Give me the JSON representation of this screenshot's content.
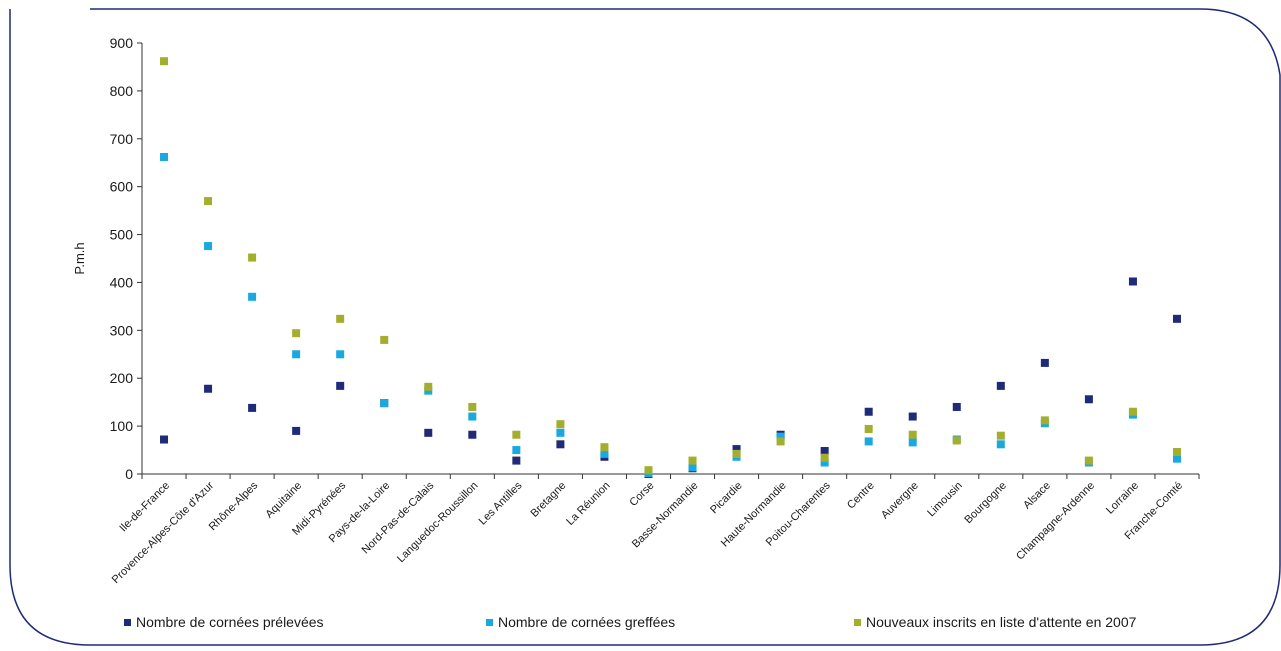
{
  "chart_data": {
    "type": "scatter",
    "ylabel": "P.m.h",
    "ylim": [
      0,
      900
    ],
    "yticks": [
      0,
      100,
      200,
      300,
      400,
      500,
      600,
      700,
      800,
      900
    ],
    "categories": [
      "Ile-de-France",
      "Provence-Alpes-Côte d'Azur",
      "Rhône-Alpes",
      "Aquitaine",
      "Midi-Pyrénées",
      "Pays-de-la-Loire",
      "Nord-Pas-de-Calais",
      "Languedoc-Roussillon",
      "Les Antilles",
      "Bretagne",
      "La Réunion",
      "Corse",
      "Basse-Normandie",
      "Picardie",
      "Haute-Normandie",
      "Poitou-Charentes",
      "Centre",
      "Auvergne",
      "Limousin",
      "Bourgogne",
      "Alsace",
      "Champagne-Ardenne",
      "Lorraine",
      "Franche-Comté"
    ],
    "series": [
      {
        "name": "Nombre de cornées prélevées",
        "color": "#1f2a78",
        "values": [
          72,
          178,
          138,
          90,
          184,
          148,
          86,
          82,
          28,
          62,
          36,
          0,
          12,
          52,
          82,
          48,
          130,
          120,
          140,
          184,
          232,
          156,
          402,
          324
        ]
      },
      {
        "name": "Nombre de cornées greffées",
        "color": "#19a9e0",
        "values": [
          662,
          476,
          370,
          250,
          250,
          148,
          174,
          120,
          50,
          86,
          42,
          2,
          14,
          36,
          78,
          24,
          68,
          66,
          72,
          62,
          106,
          24,
          124,
          32
        ]
      },
      {
        "name": "Nouveaux inscrits en liste d'attente en 2007",
        "color": "#a3ae2c",
        "values": [
          862,
          570,
          452,
          294,
          324,
          280,
          182,
          140,
          82,
          104,
          56,
          8,
          28,
          42,
          68,
          34,
          94,
          82,
          70,
          80,
          112,
          28,
          130,
          46
        ]
      }
    ]
  }
}
